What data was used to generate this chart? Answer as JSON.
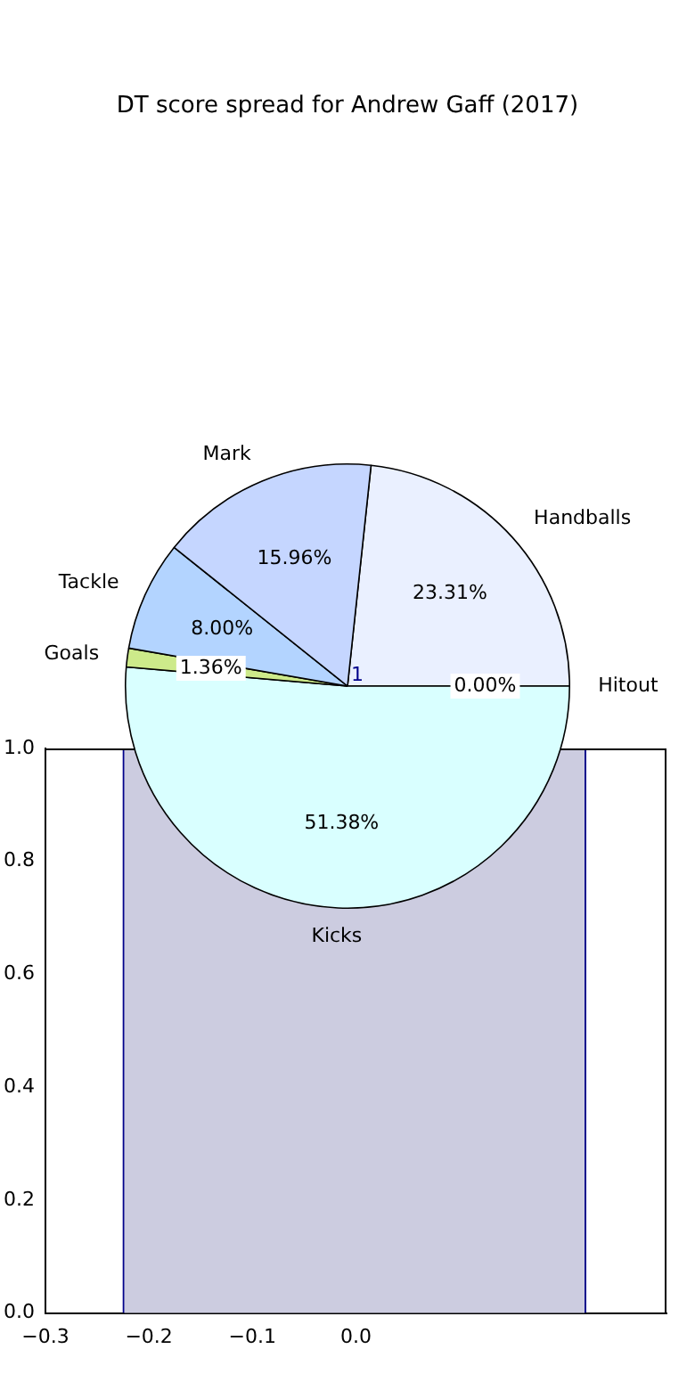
{
  "chart_data": [
    {
      "type": "pie",
      "title": "DT score spread for Andrew Gaff (2017)",
      "categories": [
        "Handballs",
        "Hitout",
        "Kicks",
        "Goals",
        "Tackle",
        "Mark"
      ],
      "values": [
        23.31,
        0.0,
        51.38,
        1.36,
        8.0,
        15.96
      ],
      "value_labels": [
        "23.31%",
        "0.00%",
        "51.38%",
        "1.36%",
        "8.00%",
        "15.96%"
      ],
      "colors": [
        "#eaf0ff",
        "#e6e6e6",
        "#d9ffff",
        "#cdea8a",
        "#b3d4ff",
        "#c5d6ff"
      ],
      "annotations": [
        "1"
      ]
    },
    {
      "type": "histogram",
      "bins": [
        -0.225,
        0.222
      ],
      "values": [
        1.0
      ],
      "color": "#cccce0",
      "xlim": [
        -0.3,
        0.3
      ],
      "xticks": [
        {
          "value": -0.3,
          "label": "−0.3"
        },
        {
          "value": -0.2,
          "label": "−0.2"
        },
        {
          "value": -0.1,
          "label": "−0.1"
        },
        {
          "value": 0.0,
          "label": "0.0"
        }
      ],
      "ylim": [
        0.0,
        1.0
      ],
      "yticks": [
        {
          "value": 0.0,
          "label": "0.0"
        },
        0.2,
        0.4,
        0.6,
        0.8,
        {
          "value": 1.0,
          "label": "1.0"
        }
      ],
      "grid": false
    }
  ]
}
